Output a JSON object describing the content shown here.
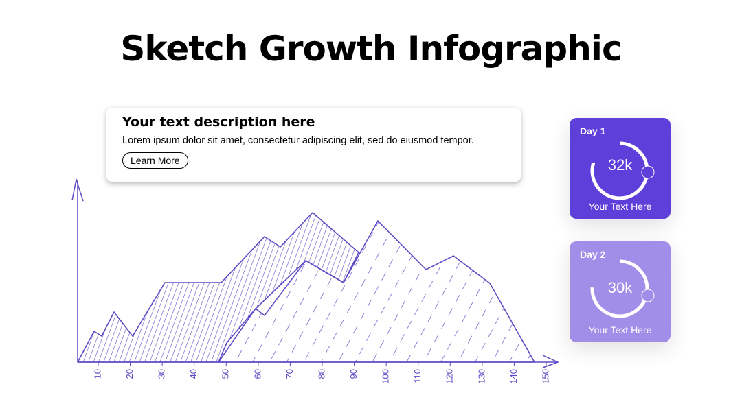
{
  "header": {
    "title": "Sketch Growth Infographic"
  },
  "description": {
    "heading": "Your text description here",
    "body": "Lorem ipsum dolor sit amet, consectetur adipiscing elit, sed do eiusmod tempor.",
    "button": "Learn More"
  },
  "axis": {
    "xticks": [
      10,
      20,
      30,
      40,
      50,
      60,
      70,
      80,
      90,
      100,
      110,
      120,
      130,
      140,
      150
    ]
  },
  "cards": [
    {
      "label": "Day 1",
      "value": "32k",
      "caption": "Your Text Here"
    },
    {
      "label": "Day 2",
      "value": "30k",
      "caption": "Your Text Here"
    }
  ]
}
